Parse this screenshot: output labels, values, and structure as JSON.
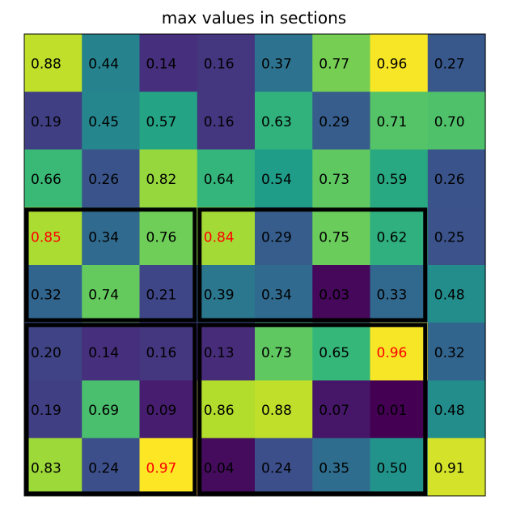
{
  "chart_data": {
    "type": "heatmap",
    "title": "max values in sections",
    "colormap": "viridis",
    "vmin": 0.01,
    "vmax": 0.97,
    "default_text_color": "#000000",
    "highlight_text_color": "#ff0000",
    "section_border_color": "#000000",
    "values": [
      [
        0.88,
        0.44,
        0.14,
        0.16,
        0.37,
        0.77,
        0.96,
        0.27
      ],
      [
        0.19,
        0.45,
        0.57,
        0.16,
        0.63,
        0.29,
        0.71,
        0.7
      ],
      [
        0.66,
        0.26,
        0.82,
        0.64,
        0.54,
        0.73,
        0.59,
        0.26
      ],
      [
        0.85,
        0.34,
        0.76,
        0.84,
        0.29,
        0.75,
        0.62,
        0.25
      ],
      [
        0.32,
        0.74,
        0.21,
        0.39,
        0.34,
        0.03,
        0.33,
        0.48
      ],
      [
        0.2,
        0.14,
        0.16,
        0.13,
        0.73,
        0.65,
        0.96,
        0.32
      ],
      [
        0.19,
        0.69,
        0.09,
        0.86,
        0.88,
        0.07,
        0.01,
        0.48
      ],
      [
        0.83,
        0.24,
        0.97,
        0.04,
        0.24,
        0.35,
        0.5,
        0.91
      ]
    ],
    "labels": [
      [
        "0.88",
        "0.44",
        "0.14",
        "0.16",
        "0.37",
        "0.77",
        "0.96",
        "0.27"
      ],
      [
        "0.19",
        "0.45",
        "0.57",
        "0.16",
        "0.63",
        "0.29",
        "0.71",
        "0.70"
      ],
      [
        "0.66",
        "0.26",
        "0.82",
        "0.64",
        "0.54",
        "0.73",
        "0.59",
        "0.26"
      ],
      [
        "0.85",
        "0.34",
        "0.76",
        "0.84",
        "0.29",
        "0.75",
        "0.62",
        "0.25"
      ],
      [
        "0.32",
        "0.74",
        "0.21",
        "0.39",
        "0.34",
        "0.03",
        "0.33",
        "0.48"
      ],
      [
        "0.20",
        "0.14",
        "0.16",
        "0.13",
        "0.73",
        "0.65",
        "0.96",
        "0.32"
      ],
      [
        "0.19",
        "0.69",
        "0.09",
        "0.86",
        "0.88",
        "0.07",
        "0.01",
        "0.48"
      ],
      [
        "0.83",
        "0.24",
        "0.97",
        "0.04",
        "0.24",
        "0.35",
        "0.50",
        "0.91"
      ]
    ],
    "sections": [
      {
        "rows": [
          3,
          4
        ],
        "cols": [
          0,
          2
        ]
      },
      {
        "rows": [
          3,
          4
        ],
        "cols": [
          3,
          6
        ]
      },
      {
        "rows": [
          5,
          7
        ],
        "cols": [
          0,
          2
        ]
      },
      {
        "rows": [
          5,
          7
        ],
        "cols": [
          3,
          6
        ]
      }
    ],
    "highlighted_cells": [
      {
        "row": 3,
        "col": 0
      },
      {
        "row": 3,
        "col": 3
      },
      {
        "row": 5,
        "col": 6
      },
      {
        "row": 7,
        "col": 2
      }
    ]
  }
}
